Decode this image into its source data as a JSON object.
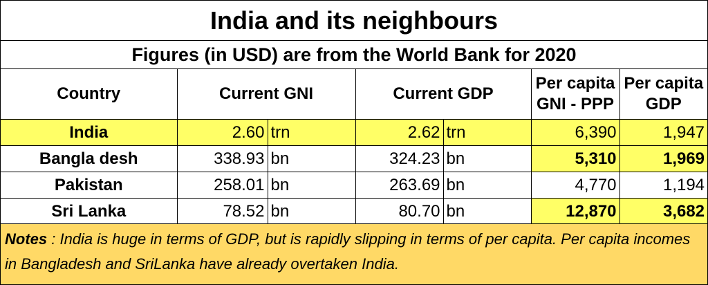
{
  "title": "India and its neighbours",
  "subtitle": "Figures (in USD) are from the World Bank for 2020",
  "headers": {
    "country": "Country",
    "gni": "Current GNI",
    "gdp": "Current GDP",
    "gni_ppp_line1": "Per capita",
    "gni_ppp_line2": "GNI - PPP",
    "pc_gdp_line1": "Per capita",
    "pc_gdp_line2": "GDP"
  },
  "rows": [
    {
      "country": "India",
      "gni": "2.60",
      "gni_unit": "trn",
      "gdp": "2.62",
      "gdp_unit": "trn",
      "gni_ppp": "6,390",
      "pc_gdp": "1,947"
    },
    {
      "country": "Bangla desh",
      "gni": "338.93",
      "gni_unit": "bn",
      "gdp": "324.23",
      "gdp_unit": "bn",
      "gni_ppp": "5,310",
      "pc_gdp": "1,969"
    },
    {
      "country": "Pakistan",
      "gni": "258.01",
      "gni_unit": "bn",
      "gdp": "263.69",
      "gdp_unit": "bn",
      "gni_ppp": "4,770",
      "pc_gdp": "1,194"
    },
    {
      "country": "Sri Lanka",
      "gni": "78.52",
      "gni_unit": "bn",
      "gdp": "80.70",
      "gdp_unit": "bn",
      "gni_ppp": "12,870",
      "pc_gdp": "3,682"
    }
  ],
  "notes": {
    "label": "Notes",
    "text": " : India is huge in terms of GDP, but is rapidly slipping in terms of per capita.  Per capita incomes in Bangladesh and SriLanka have already overtaken India."
  },
  "colors": {
    "highlight": "#ffff66",
    "notes_background": "#ffd966"
  }
}
